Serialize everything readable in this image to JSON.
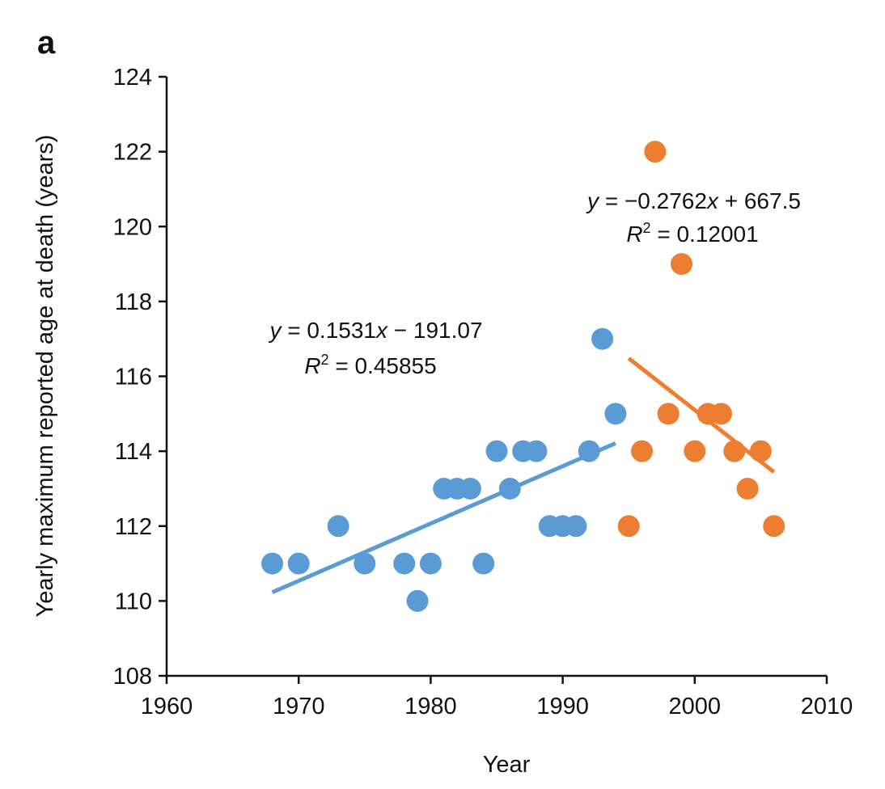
{
  "panel_label": "a",
  "chart_data": {
    "type": "scatter",
    "xlabel": "Year",
    "ylabel": "Yearly maximum reported age at death (years)",
    "xlim": [
      1960,
      2010
    ],
    "ylim": [
      108,
      124
    ],
    "xticks": [
      1960,
      1970,
      1980,
      1990,
      2000,
      2010
    ],
    "yticks": [
      108,
      110,
      112,
      114,
      116,
      118,
      120,
      122,
      124
    ],
    "grid": false,
    "series": [
      {
        "color": "#5b9bd5",
        "x": [
          1968,
          1970,
          1973,
          1975,
          1978,
          1979,
          1980,
          1981,
          1982,
          1983,
          1984,
          1985,
          1986,
          1987,
          1988,
          1989,
          1990,
          1991,
          1992,
          1993,
          1994
        ],
        "y": [
          111,
          111,
          112,
          111,
          111,
          110,
          111,
          113,
          113,
          113,
          111,
          114,
          113,
          114,
          114,
          112,
          112,
          112,
          114,
          117,
          115
        ],
        "fit": {
          "slope": 0.1531,
          "intercept": -191.07,
          "x_range": [
            1968,
            1994
          ]
        },
        "equation": {
          "y": "y",
          "formula": " = 0.1531",
          "x": "x",
          "rest": " − 191.07",
          "r2_label": "R",
          "r2_value": " = 0.45855"
        }
      },
      {
        "color": "#ed7d31",
        "x": [
          1995,
          1996,
          1997,
          1998,
          1999,
          2000,
          2001,
          2002,
          2003,
          2004,
          2005,
          2006
        ],
        "y": [
          112,
          114,
          122,
          115,
          119,
          114,
          115,
          115,
          114,
          113,
          114,
          112
        ],
        "fit": {
          "slope": -0.2762,
          "intercept": 667.5,
          "x_range": [
            1995,
            2006
          ]
        },
        "equation": {
          "y": "y",
          "formula": " = −0.2762",
          "x": "x",
          "rest": " + 667.5",
          "r2_label": "R",
          "r2_value": " = 0.12001"
        }
      }
    ]
  }
}
